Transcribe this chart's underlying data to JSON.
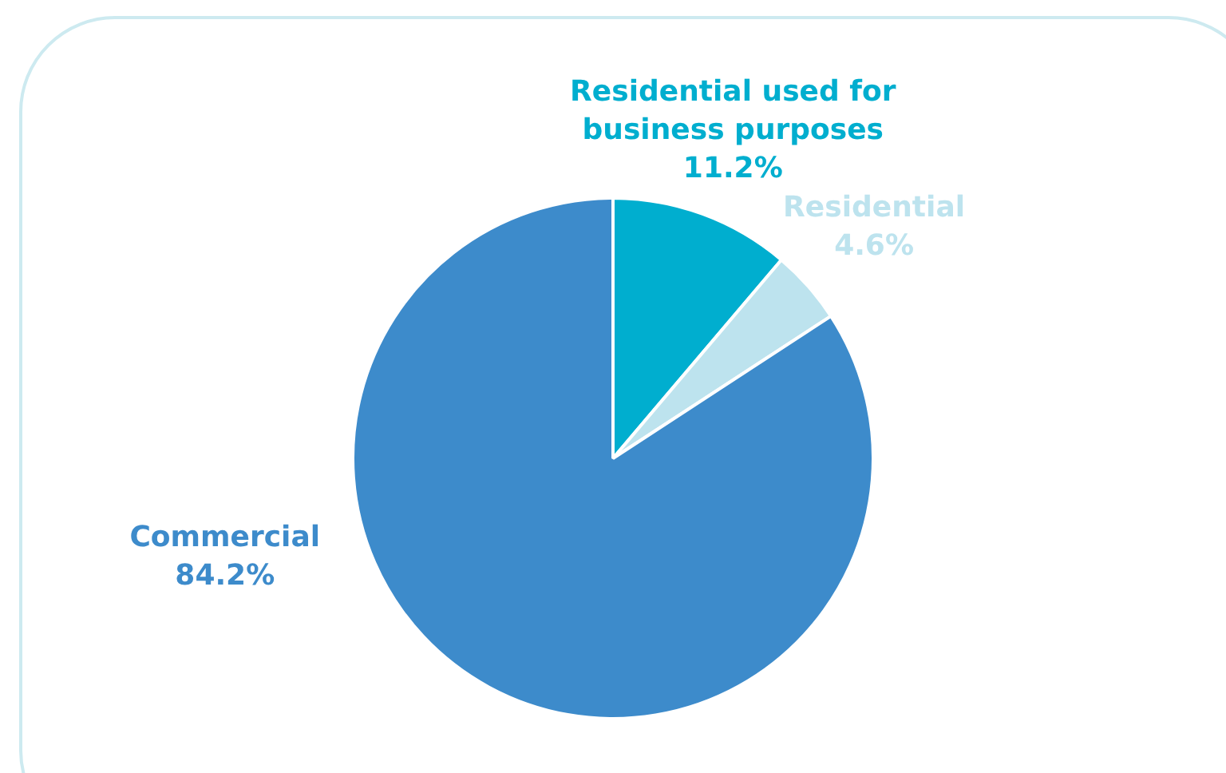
{
  "chart_data": {
    "type": "pie",
    "categories": [
      "Residential used for business purposes",
      "Residential",
      "Commercial"
    ],
    "values": [
      11.2,
      4.6,
      84.2
    ],
    "colors": [
      "#00aecf",
      "#bde3ee",
      "#3d8bcb"
    ],
    "value_labels": [
      "11.2%",
      "4.6%",
      "84.2%"
    ],
    "legend": false
  }
}
